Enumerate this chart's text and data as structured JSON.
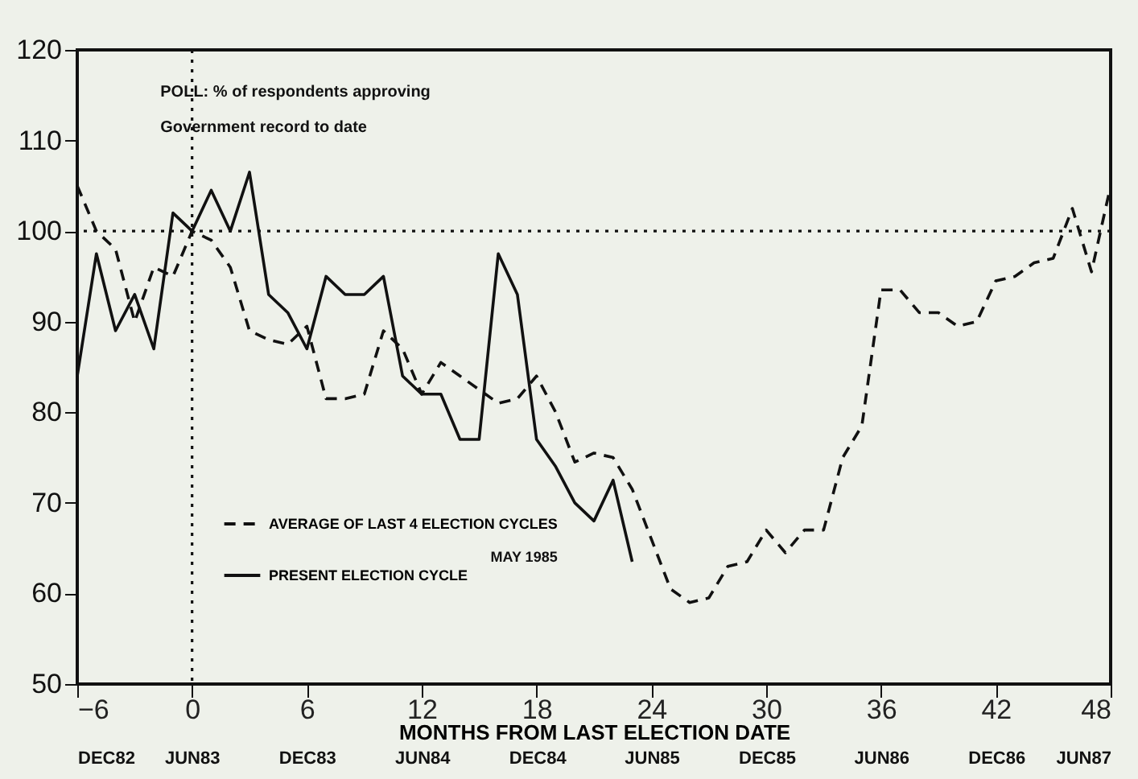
{
  "chart_data": {
    "type": "line",
    "title": "POLL: % of respondents approving",
    "subtitle": "Government record to date",
    "xlabel": "MONTHS FROM LAST ELECTION DATE",
    "xlim": [
      -6,
      48
    ],
    "xticks": [
      -6,
      0,
      6,
      12,
      18,
      24,
      30,
      36,
      42,
      48
    ],
    "ylim": [
      50,
      120
    ],
    "yticks": [
      50,
      60,
      70,
      80,
      90,
      100,
      110,
      120
    ],
    "x2lim": [
      "1982-12",
      "1987-06"
    ],
    "x2ticks": [
      {
        "value": "1982-12",
        "label": "DEC82"
      },
      {
        "value": "1983-06",
        "label": "JUN83"
      },
      {
        "value": "1983-12",
        "label": "DEC83"
      },
      {
        "value": "1984-06",
        "label": "JUN84"
      },
      {
        "value": "1984-12",
        "label": "DEC84"
      },
      {
        "value": "1985-06",
        "label": "JUN85"
      },
      {
        "value": "1985-12",
        "label": "DEC85"
      },
      {
        "value": "1986-06",
        "label": "JUN86"
      },
      {
        "value": "1986-12",
        "label": "DEC86"
      },
      {
        "value": "1987-06",
        "label": "JUN87"
      }
    ],
    "x": [
      -6,
      -5,
      -4,
      -3,
      -2,
      -1,
      0,
      1,
      2,
      3,
      4,
      5,
      6,
      7,
      8,
      9,
      10,
      11,
      12,
      13,
      14,
      15,
      16,
      17,
      18,
      19,
      20,
      21,
      22,
      23,
      24,
      25,
      26,
      27,
      28,
      29,
      30,
      31,
      32,
      33,
      34,
      35,
      36,
      37,
      38,
      39,
      40,
      41,
      42,
      43,
      44,
      45,
      46,
      47,
      48
    ],
    "series": [
      {
        "name": "AVERAGE OF LAST 4 ELECTION CYCLES",
        "color": "#111111",
        "line_style": "dashed",
        "values": [
          105,
          100,
          98,
          90,
          96,
          95,
          100,
          99,
          96,
          89,
          88,
          87.5,
          89.5,
          81.5,
          81.5,
          82,
          89,
          87,
          82,
          85.5,
          84,
          82.5,
          81,
          81.5,
          84,
          80,
          74.5,
          75.5,
          75,
          71.5,
          66,
          60.5,
          59,
          59.5,
          63,
          63.5,
          67,
          64.5,
          67,
          67,
          75,
          78.5,
          93.5,
          93.5,
          91,
          91,
          89.5,
          90,
          94.5,
          95,
          96.5,
          97,
          102.5,
          95.5,
          105
        ]
      },
      {
        "name": "PRESENT ELECTION CYCLE",
        "color": "#111111",
        "line_style": "solid",
        "x": [
          -6,
          -5,
          -4,
          -3,
          -2,
          -1,
          0,
          1,
          2,
          3,
          4,
          5,
          6,
          7,
          8,
          9,
          10,
          11,
          12,
          13,
          14,
          15,
          16,
          17,
          18,
          19,
          20,
          21,
          22,
          23
        ],
        "values": [
          84,
          97.5,
          89,
          93,
          87,
          102,
          100,
          104.5,
          100,
          106.5,
          93,
          91,
          87,
          95,
          93,
          93,
          95,
          84,
          82,
          82,
          77,
          77,
          97.5,
          93,
          77,
          74,
          70,
          68,
          72.5,
          63.5
        ]
      }
    ],
    "ref_lines": [
      {
        "axis": "x",
        "value": 0,
        "line_style": "dotted"
      },
      {
        "axis": "y",
        "value": 100,
        "line_style": "dotted"
      }
    ],
    "annotations": [
      "MAY 1985"
    ],
    "legend": "bottom left",
    "grid": false,
    "marker": "none"
  }
}
